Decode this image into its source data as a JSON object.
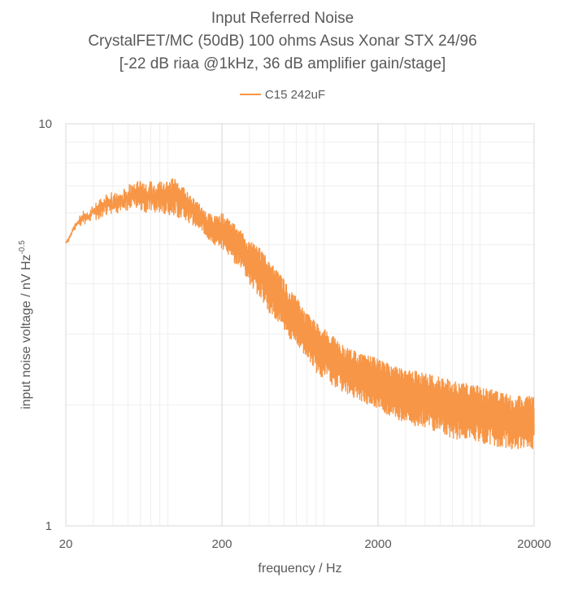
{
  "chart_data": {
    "type": "line",
    "title_lines": [
      "Input Referred Noise",
      "CrystalFET/MC (50dB) 100 ohms Asus Xonar STX 24/96",
      "[-22 dB riaa @1kHz, 36 dB amplifier gain/stage]"
    ],
    "xlabel": "frequency / Hz",
    "ylabel_main": "input noise voltage / nV Hz",
    "ylabel_sup": "-0.5",
    "x_scale": "log",
    "y_scale": "log",
    "xlim": [
      20,
      20000
    ],
    "ylim": [
      1,
      10
    ],
    "x_ticks": [
      20,
      200,
      2000,
      20000
    ],
    "x_tick_labels": [
      "20",
      "200",
      "2000",
      "20000"
    ],
    "y_ticks": [
      1,
      10
    ],
    "y_tick_labels": [
      "1",
      "10"
    ],
    "grid": true,
    "legend_position": "top",
    "series": [
      {
        "name": "C15 242uF",
        "color": "#f79646",
        "envelope": {
          "x": [
            20,
            21,
            22,
            24,
            26,
            28,
            30,
            32,
            35,
            38,
            40,
            45,
            50,
            55,
            60,
            65,
            70,
            75,
            80,
            90,
            100,
            110,
            120,
            130,
            140,
            150,
            160,
            180,
            200,
            220,
            250,
            280,
            300,
            350,
            400,
            450,
            500,
            600,
            700,
            800,
            1000,
            1200,
            1500,
            2000,
            2500,
            3000,
            4000,
            5000,
            6000,
            8000,
            10000,
            12000,
            15000,
            20000
          ],
          "low": [
            5.0,
            5.1,
            5.3,
            5.6,
            5.5,
            5.7,
            5.8,
            5.7,
            5.9,
            6.0,
            5.9,
            6.0,
            6.1,
            6.2,
            6.1,
            6.0,
            6.1,
            6.0,
            6.0,
            5.9,
            5.9,
            5.8,
            5.7,
            5.6,
            5.5,
            5.4,
            5.2,
            5.0,
            4.9,
            4.7,
            4.4,
            4.2,
            4.0,
            3.7,
            3.4,
            3.2,
            3.0,
            2.8,
            2.6,
            2.4,
            2.25,
            2.15,
            2.05,
            1.95,
            1.85,
            1.8,
            1.75,
            1.7,
            1.65,
            1.62,
            1.6,
            1.57,
            1.55,
            1.55
          ],
          "high": [
            5.1,
            5.3,
            5.5,
            5.8,
            6.2,
            6.0,
            6.3,
            6.5,
            6.6,
            6.8,
            6.7,
            6.9,
            7.1,
            7.2,
            7.3,
            7.1,
            7.2,
            7.0,
            7.2,
            7.2,
            7.4,
            7.0,
            6.8,
            6.6,
            6.4,
            6.2,
            6.0,
            5.9,
            6.0,
            5.8,
            5.6,
            5.3,
            5.1,
            4.9,
            4.6,
            4.3,
            4.1,
            3.7,
            3.4,
            3.2,
            3.0,
            2.8,
            2.7,
            2.6,
            2.5,
            2.45,
            2.4,
            2.35,
            2.3,
            2.25,
            2.2,
            2.15,
            2.1,
            2.1
          ]
        }
      }
    ]
  }
}
